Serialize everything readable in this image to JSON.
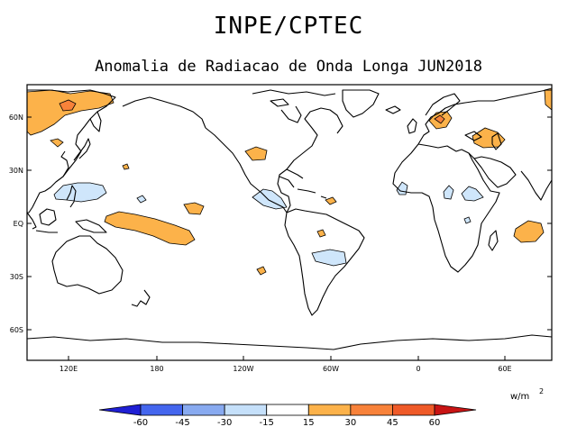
{
  "header": {
    "title": "INPE/CPTEC",
    "subtitle": "Anomalia de Radiacao de Onda Longa JUN2018"
  },
  "map": {
    "lat_labels": [
      "60N",
      "30N",
      "EQ",
      "30S",
      "60S"
    ],
    "lon_labels": [
      "120E",
      "180",
      "120W",
      "60W",
      "0",
      "60E"
    ]
  },
  "legend": {
    "units": "w/m",
    "units_exp": "2",
    "levels": [
      "-60",
      "-45",
      "-30",
      "-15",
      "15",
      "30",
      "45",
      "60"
    ],
    "colors": [
      "#1f1fd4",
      "#4466ee",
      "#88aaf0",
      "#c5e0fa",
      "#ffffff",
      "#fcb24a",
      "#f8823a",
      "#ef5a28",
      "#c81414"
    ]
  }
}
